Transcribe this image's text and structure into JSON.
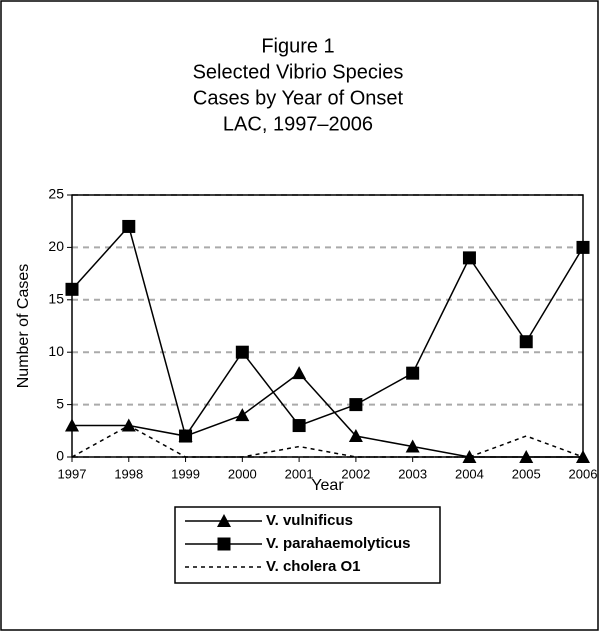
{
  "chart_data": {
    "type": "line",
    "title": [
      "Figure 1",
      "Selected Vibrio Species",
      "Cases by Year of Onset",
      "LAC, 1997–2006"
    ],
    "x_label": "Year",
    "y_label": "Number of Cases",
    "x": [
      1997,
      1998,
      1999,
      2000,
      2001,
      2002,
      2003,
      2004,
      2005,
      2006
    ],
    "xlim": [
      1997,
      2006
    ],
    "xticks": [
      1997,
      1998,
      1999,
      2000,
      2001,
      2002,
      2003,
      2004,
      2005,
      2006
    ],
    "ylim": [
      0,
      25
    ],
    "yticks": [
      0,
      5,
      10,
      15,
      20,
      25
    ],
    "grid": true,
    "legend": "bottom",
    "series": [
      {
        "name": "V. vulnificus",
        "color": "#000000",
        "line_style": "solid",
        "marker": "triangle",
        "values": [
          3,
          3,
          2,
          4,
          8,
          2,
          1,
          0,
          0,
          0
        ]
      },
      {
        "name": "V. parahaemolyticus",
        "color": "#000000",
        "line_style": "solid",
        "marker": "square",
        "values": [
          16,
          22,
          2,
          10,
          3,
          5,
          8,
          19,
          11,
          20
        ]
      },
      {
        "name": "V. cholera O1",
        "color": "#000000",
        "line_style": "dashed",
        "marker": "none",
        "values": [
          0,
          3,
          0,
          0,
          1,
          0,
          0,
          0,
          2,
          0
        ]
      }
    ]
  }
}
